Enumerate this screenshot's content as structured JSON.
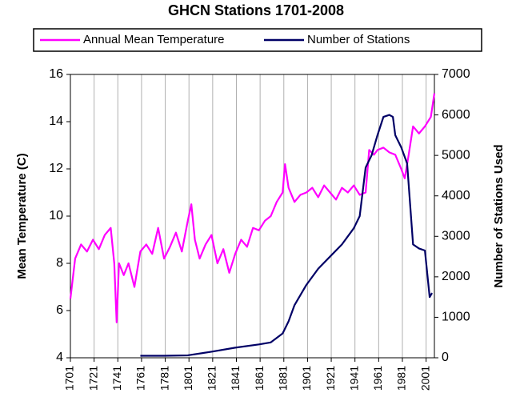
{
  "chart_data": {
    "type": "line",
    "title": "GHCN Stations 1701-2008",
    "y_label": "Mean Temperature (C)",
    "y2_label": "Number of Stations Used",
    "xlim": [
      1701,
      2008
    ],
    "xticks": [
      1701,
      1721,
      1741,
      1761,
      1781,
      1801,
      1821,
      1841,
      1861,
      1881,
      1901,
      1921,
      1941,
      1961,
      1981,
      2001
    ],
    "ylim": [
      4,
      16
    ],
    "yticks": [
      4,
      6,
      8,
      10,
      12,
      14,
      16
    ],
    "y2lim": [
      0,
      7000
    ],
    "y2ticks": [
      0,
      1000,
      2000,
      3000,
      4000,
      5000,
      6000,
      7000
    ],
    "grid": true,
    "series": [
      {
        "name": "Annual Mean Temperature",
        "color": "#ff00ff",
        "x": [
          1701,
          1705,
          1710,
          1715,
          1720,
          1725,
          1730,
          1735,
          1738,
          1740,
          1742,
          1746,
          1750,
          1755,
          1760,
          1765,
          1770,
          1775,
          1780,
          1785,
          1790,
          1795,
          1800,
          1803,
          1806,
          1810,
          1815,
          1820,
          1825,
          1830,
          1835,
          1840,
          1845,
          1850,
          1855,
          1860,
          1865,
          1870,
          1875,
          1880,
          1882,
          1885,
          1890,
          1895,
          1900,
          1905,
          1910,
          1915,
          1920,
          1925,
          1930,
          1935,
          1940,
          1945,
          1950,
          1953,
          1957,
          1960,
          1965,
          1970,
          1975,
          1980,
          1983,
          1986,
          1990,
          1995,
          2000,
          2005,
          2008
        ],
        "values": [
          6.5,
          8.2,
          8.8,
          8.5,
          9.0,
          8.6,
          9.2,
          9.5,
          8.0,
          5.5,
          8.0,
          7.5,
          8.0,
          7.0,
          8.5,
          8.8,
          8.4,
          9.5,
          8.2,
          8.7,
          9.3,
          8.5,
          9.8,
          10.5,
          9.0,
          8.2,
          8.8,
          9.2,
          8.0,
          8.6,
          7.6,
          8.4,
          9.0,
          8.7,
          9.5,
          9.4,
          9.8,
          10.0,
          10.6,
          11.0,
          12.2,
          11.2,
          10.6,
          10.9,
          11.0,
          11.2,
          10.8,
          11.3,
          11.0,
          10.7,
          11.2,
          11.0,
          11.3,
          10.9,
          11.0,
          12.8,
          12.6,
          12.8,
          12.9,
          12.7,
          12.6,
          12.0,
          11.6,
          12.5,
          13.8,
          13.5,
          13.8,
          14.2,
          15.2
        ]
      },
      {
        "name": "Number of Stations",
        "color": "#000066",
        "axis": "y2",
        "x": [
          1760,
          1780,
          1800,
          1820,
          1840,
          1860,
          1870,
          1880,
          1885,
          1890,
          1900,
          1910,
          1920,
          1930,
          1940,
          1945,
          1950,
          1955,
          1960,
          1965,
          1970,
          1973,
          1975,
          1980,
          1985,
          1990,
          1995,
          2000,
          2004,
          2006
        ],
        "values": [
          50,
          50,
          60,
          150,
          250,
          330,
          380,
          600,
          900,
          1300,
          1800,
          2200,
          2500,
          2800,
          3200,
          3500,
          4700,
          5000,
          5500,
          5950,
          6000,
          5950,
          5500,
          5200,
          4800,
          2800,
          2700,
          2650,
          1500,
          1600
        ]
      }
    ]
  }
}
